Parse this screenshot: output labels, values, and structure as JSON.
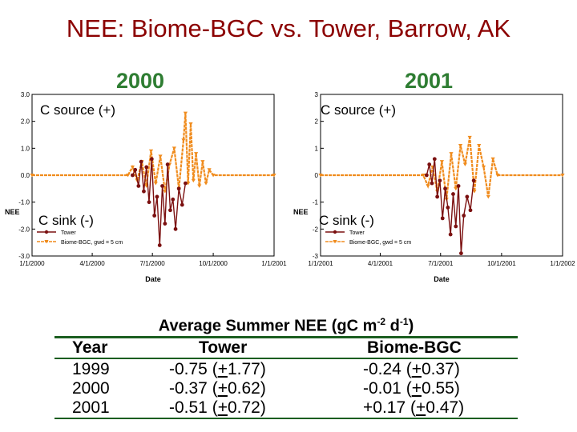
{
  "title": "NEE:  Biome-BGC vs. Tower, Barrow, AK",
  "panels": {
    "left": {
      "year_label": "2000",
      "source_label": "C source (+)",
      "sink_label": "C sink (-)",
      "yticks": [
        "3.0",
        "2.0",
        "1.0",
        "0.0",
        "-1.0",
        "-2.0",
        "-3.0"
      ],
      "xticks": [
        "1/1/2000",
        "4/1/2000",
        "7/1/2000",
        "10/1/2000",
        "1/1/2001"
      ],
      "xlabel": "Date",
      "ylabel": "NEE",
      "legend": [
        "Tower",
        "Biome-BGC, gwd = 5 cm"
      ]
    },
    "right": {
      "year_label": "2001",
      "source_label": "C source (+)",
      "sink_label": "C sink (-)",
      "yticks": [
        "3",
        "2",
        "1",
        "0",
        "-1",
        "-2",
        "-3"
      ],
      "xticks": [
        "1/1/2001",
        "4/1/2001",
        "7/1/2001",
        "10/1/2001",
        "1/1/2002"
      ],
      "xlabel": "Date",
      "ylabel": "NEE",
      "legend": [
        "Tower",
        "Biome-BGC, gwd = 5 cm"
      ]
    }
  },
  "colors": {
    "title": "#8b0000",
    "year": "#2e7d32",
    "tower": "#7b1010",
    "model": "#f08c1e",
    "rule": "#1b5e20"
  },
  "chart_data": [
    {
      "type": "line",
      "xlabel": "Date",
      "ylabel": "NEE",
      "ylim": [
        -3,
        3
      ],
      "x_ticks": [
        "1/1/2000",
        "4/1/2000",
        "7/1/2000",
        "10/1/2000",
        "1/1/2001"
      ],
      "legend_placement": "bottom-left",
      "series": [
        {
          "name": "Tower",
          "x": [
            "6/1/2000",
            "6/5/2000",
            "6/10/2000",
            "6/14/2000",
            "6/18/2000",
            "6/22/2000",
            "6/26/2000",
            "6/30/2000",
            "7/4/2000",
            "7/8/2000",
            "7/12/2000",
            "7/16/2000",
            "7/20/2000",
            "7/24/2000",
            "7/28/2000",
            "8/1/2000",
            "8/5/2000",
            "8/10/2000",
            "8/15/2000",
            "8/20/2000"
          ],
          "y": [
            0.0,
            0.2,
            -0.4,
            0.5,
            -0.6,
            0.3,
            -1.0,
            0.6,
            -1.5,
            -0.8,
            -2.6,
            -0.4,
            -1.8,
            0.4,
            -1.3,
            -0.9,
            -2.0,
            -0.5,
            -1.1,
            -0.3
          ]
        },
        {
          "name": "Biome-BGC, gwd = 5 cm",
          "x": [
            "1/1/2000",
            "5/25/2000",
            "6/1/2000",
            "6/8/2000",
            "6/15/2000",
            "6/22/2000",
            "6/29/2000",
            "7/6/2000",
            "7/13/2000",
            "7/20/2000",
            "7/27/2000",
            "8/3/2000",
            "8/10/2000",
            "8/17/2000",
            "8/20/2000",
            "8/24/2000",
            "8/28/2000",
            "9/1/2000",
            "9/5/2000",
            "9/10/2000",
            "9/15/2000",
            "9/20/2000",
            "9/25/2000",
            "10/1/2000",
            "1/1/2001"
          ],
          "y": [
            0.0,
            0.0,
            0.3,
            -0.2,
            0.5,
            -0.4,
            0.9,
            -0.3,
            0.7,
            -0.6,
            0.4,
            1.0,
            -0.5,
            1.3,
            2.3,
            -0.3,
            1.9,
            -0.2,
            0.8,
            -0.4,
            0.5,
            -0.3,
            0.2,
            0.0,
            0.0
          ]
        }
      ]
    },
    {
      "type": "line",
      "xlabel": "Date",
      "ylabel": "NEE",
      "ylim": [
        -3,
        3
      ],
      "x_ticks": [
        "1/1/2001",
        "4/1/2001",
        "7/1/2001",
        "10/1/2001",
        "1/1/2002"
      ],
      "legend_placement": "bottom-left",
      "series": [
        {
          "name": "Tower",
          "x": [
            "6/10/2001",
            "6/14/2001",
            "6/18/2001",
            "6/22/2001",
            "6/26/2001",
            "6/30/2001",
            "7/4/2001",
            "7/8/2001",
            "7/12/2001",
            "7/16/2001",
            "7/20/2001",
            "7/24/2001",
            "7/28/2001",
            "8/1/2001",
            "8/5/2001",
            "8/10/2001",
            "8/15/2001",
            "8/20/2001"
          ],
          "y": [
            0.0,
            0.4,
            -0.3,
            0.6,
            -0.8,
            -0.2,
            -1.6,
            -0.5,
            -1.2,
            -2.2,
            -0.7,
            -1.9,
            -0.4,
            -2.9,
            -1.5,
            -0.8,
            -1.3,
            -0.2
          ]
        },
        {
          "name": "Biome-BGC, gwd = 5 cm",
          "x": [
            "1/1/2001",
            "6/5/2001",
            "6/12/2001",
            "6/19/2001",
            "6/26/2001",
            "7/3/2001",
            "7/10/2001",
            "7/17/2001",
            "7/24/2001",
            "7/31/2001",
            "8/7/2001",
            "8/14/2001",
            "8/21/2001",
            "8/28/2001",
            "9/4/2001",
            "9/11/2001",
            "9/18/2001",
            "9/25/2001",
            "1/1/2002"
          ],
          "y": [
            0.0,
            0.0,
            -0.4,
            0.3,
            -0.6,
            0.5,
            -0.9,
            0.8,
            -0.5,
            1.1,
            0.4,
            1.4,
            -0.6,
            1.1,
            0.3,
            -0.8,
            0.6,
            0.0,
            0.0
          ]
        }
      ]
    }
  ],
  "table": {
    "title": "Average Summer NEE (gC m",
    "title_sup1": "-2",
    "title_mid": " d",
    "title_sup2": "-1",
    "title_end": ")",
    "headers": [
      "Year",
      "Tower",
      "Biome-BGC"
    ],
    "rows": [
      {
        "year": "1999",
        "tower_pre": "-0.75 (",
        "tower_pm": "+",
        "tower_post": "1.77)",
        "bgc_pre": "-0.24 (",
        "bgc_pm": "+",
        "bgc_post": "0.37)"
      },
      {
        "year": "2000",
        "tower_pre": "-0.37 (",
        "tower_pm": "+",
        "tower_post": "0.62)",
        "bgc_pre": "-0.01 (",
        "bgc_pm": "+",
        "bgc_post": "0.55)"
      },
      {
        "year": "2001",
        "tower_pre": "-0.51 (",
        "tower_pm": "+",
        "tower_post": "0.72)",
        "bgc_pre": "+0.17 (",
        "bgc_pm": "+",
        "bgc_post": "0.47)"
      }
    ]
  }
}
